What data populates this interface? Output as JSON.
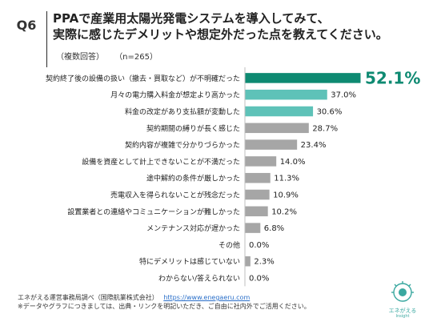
{
  "header": {
    "badge": "Q6",
    "title_line1": "PPAで産業用太陽光発電システムを導入してみて、",
    "title_line2": "実際に感じたデメリットや想定外だった点を教えてください。",
    "note_multi": "（複数回答）",
    "note_n": "（n=265）"
  },
  "chart_data": {
    "type": "bar",
    "orientation": "horizontal",
    "categories": [
      "契約終了後の設備の扱い（撤去・買取など）が不明確だった",
      "月々の電力購入料金が想定より高かった",
      "料金の改定があり支払額が変動した",
      "契約期間の縛りが長く感じた",
      "契約内容が複雑で分かりづらかった",
      "設備を資産として計上できないことが不満だった",
      "途中解約の条件が厳しかった",
      "売電収入を得られないことが残念だった",
      "設置業者との連絡やコミュニケーションが難しかった",
      "メンテナンス対応が遅かった",
      "その他",
      "特にデメリットは感じていない",
      "わからない/答えられない"
    ],
    "values": [
      52.1,
      37.0,
      30.6,
      28.7,
      23.4,
      14.0,
      11.3,
      10.9,
      10.2,
      6.8,
      0.0,
      2.3,
      0.0
    ],
    "value_labels": [
      "52.1%",
      "37.0%",
      "30.6%",
      "28.7%",
      "23.4%",
      "14.0%",
      "11.3%",
      "10.9%",
      "10.2%",
      "6.8%",
      "0.0%",
      "2.3%",
      "0.0%"
    ],
    "colors": [
      "#0e8a72",
      "#5ec2b8",
      "#5ec2b8",
      "#a6a6a6",
      "#a6a6a6",
      "#a6a6a6",
      "#a6a6a6",
      "#a6a6a6",
      "#a6a6a6",
      "#a6a6a6",
      "#a6a6a6",
      "#a6a6a6",
      "#a6a6a6"
    ],
    "xlim": [
      0,
      52.1
    ],
    "grid": false,
    "legend": "none"
  },
  "footer": {
    "source": "エネがえる運営事務局調べ（国際航業株式会社）",
    "url": "https://www.enegaeru.com",
    "note": "※データやグラフにつきましては、出典・リンクを明記いただき、ご自由に社内外でご活用ください。"
  },
  "logo": {
    "name": "エネがえる",
    "sub": "Insight",
    "color": "#3aa8a0"
  }
}
